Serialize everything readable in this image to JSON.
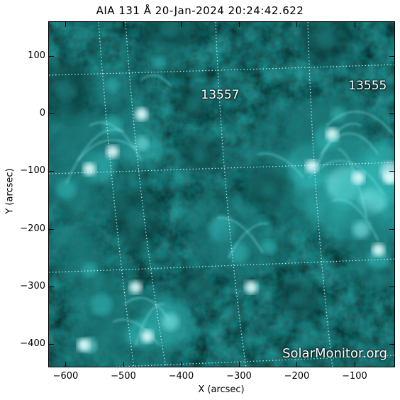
{
  "title": "AIA 131 Å 20-Jan-2024 20:24:42.622",
  "image": {
    "colormap": [
      "#041818",
      "#0d4545",
      "#1a7878",
      "#33b5b5",
      "#7fe8e8",
      "#e6ffff"
    ]
  },
  "x_axis": {
    "label": "X (arcsec)",
    "range": [
      -630,
      -30
    ],
    "ticks": [
      {
        "value": -600,
        "label": "−600"
      },
      {
        "value": -500,
        "label": "−500"
      },
      {
        "value": -400,
        "label": "−400"
      },
      {
        "value": -300,
        "label": "−300"
      },
      {
        "value": -200,
        "label": "−200"
      },
      {
        "value": -100,
        "label": "−100"
      }
    ]
  },
  "y_axis": {
    "label": "Y (arcsec)",
    "range": [
      -440,
      160
    ],
    "ticks": [
      {
        "value": 100,
        "label": "100"
      },
      {
        "value": 0,
        "label": "0"
      },
      {
        "value": -100,
        "label": "−100"
      },
      {
        "value": -200,
        "label": "−200"
      },
      {
        "value": -300,
        "label": "−300"
      },
      {
        "value": -400,
        "label": "−400"
      }
    ]
  },
  "active_regions": [
    {
      "label": "13557",
      "x": -335,
      "y": 32
    },
    {
      "label": "13555",
      "x": -80,
      "y": 48
    }
  ],
  "watermark": "SolarMonitor.org"
}
